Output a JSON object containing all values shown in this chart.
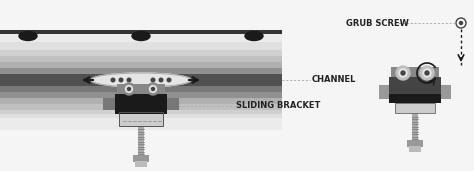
{
  "bg_color": "#f5f5f5",
  "ch_colors": [
    "#e8e8e8",
    "#d0d0d0",
    "#c0c0c0",
    "#b0b0b0",
    "#a0a0a0",
    "#888888",
    "#606060",
    "#484848",
    "#606060",
    "#888888",
    "#a0a0a0",
    "#b0b0b0",
    "#c0c0c0",
    "#d0d0d0",
    "#e8e8e8"
  ],
  "label_channel": "CHANNEL",
  "label_bracket": "SLIDING BRACKET",
  "label_grub": "GRUB SCREW",
  "text_color": "#222222",
  "line_color": "#aaaaaa",
  "arrow_color": "#1a1a1a"
}
